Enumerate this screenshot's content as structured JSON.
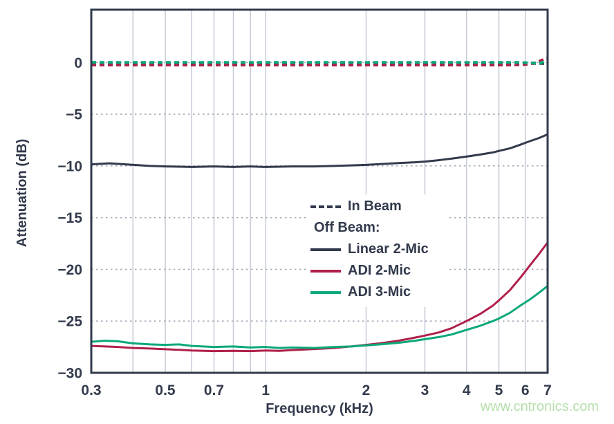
{
  "watermark": {
    "text": "www.cntronics.com",
    "color": "#b6dfab"
  },
  "chart_data": {
    "type": "line",
    "title": "",
    "xlabel": "Frequency (kHz)",
    "ylabel": "Attenuation (dB)",
    "x_scale": "log",
    "xlim": [
      0.3,
      7
    ],
    "ylim": [
      -30,
      5.1
    ],
    "grid": "on",
    "colors": {
      "dark": "#323a4c",
      "red": "#b0204a",
      "green": "#0aa87a",
      "v_gridline": "#c9cdd9",
      "h_gridline": "#a5abba",
      "border": "#323a4c"
    },
    "x_ticks": [
      {
        "v": 0.3,
        "label": "0.3"
      },
      {
        "v": 0.5,
        "label": "0.5"
      },
      {
        "v": 0.7,
        "label": "0.7"
      },
      {
        "v": 1,
        "label": "1"
      },
      {
        "v": 2,
        "label": "2"
      },
      {
        "v": 3,
        "label": "3"
      },
      {
        "v": 4,
        "label": "4"
      },
      {
        "v": 5,
        "label": "5"
      },
      {
        "v": 6,
        "label": "6"
      },
      {
        "v": 7,
        "label": "7"
      }
    ],
    "y_ticks": [
      {
        "v": 0,
        "label": "0"
      },
      {
        "v": -5,
        "label": "−5"
      },
      {
        "v": -10,
        "label": "−10"
      },
      {
        "v": -15,
        "label": "−15"
      },
      {
        "v": -20,
        "label": "−20"
      },
      {
        "v": -25,
        "label": "−25"
      },
      {
        "v": -30,
        "label": "−30"
      }
    ],
    "x_gridlines": [
      0.4,
      0.5,
      0.6,
      0.7,
      0.8,
      0.9,
      1,
      2,
      3,
      4,
      5,
      6
    ],
    "y_gridlines": [
      0,
      -5,
      -10,
      -15,
      -20,
      -25
    ],
    "legend": {
      "position": "center-right",
      "items": [
        {
          "label": "In Beam",
          "swatch": "dashed",
          "color": "#323a4c"
        },
        {
          "label": "Off Beam:",
          "swatch": "none",
          "color": ""
        },
        {
          "label": "Linear 2-Mic",
          "swatch": "solid",
          "color": "#323a4c"
        },
        {
          "label": "ADI 2-Mic",
          "swatch": "solid",
          "color": "#b0204a"
        },
        {
          "label": "ADI 3-Mic",
          "swatch": "solid",
          "color": "#0aa87a"
        }
      ]
    },
    "series": [
      {
        "name": "In Beam Linear 2-Mic",
        "color": "#323a4c",
        "dash": true,
        "width": 4,
        "points": [
          [
            0.3,
            -0.1
          ],
          [
            7,
            -0.1
          ]
        ]
      },
      {
        "name": "In Beam ADI 2-Mic",
        "color": "#b0204a",
        "dash": true,
        "width": 4,
        "points": [
          [
            0.3,
            -0.25
          ],
          [
            5.5,
            -0.25
          ],
          [
            6.0,
            -0.2
          ],
          [
            6.4,
            -0.05
          ],
          [
            6.7,
            0.2
          ],
          [
            7,
            0.45
          ]
        ]
      },
      {
        "name": "In Beam ADI 3-Mic",
        "color": "#0aa87a",
        "dash": true,
        "width": 4,
        "points": [
          [
            0.3,
            0.0
          ],
          [
            5.8,
            0.0
          ],
          [
            6.3,
            -0.05
          ],
          [
            6.6,
            -0.1
          ],
          [
            6.8,
            0.05
          ],
          [
            7,
            0.3
          ]
        ]
      },
      {
        "name": "Off Beam Linear 2-Mic",
        "color": "#323a4c",
        "dash": false,
        "width": 3,
        "points": [
          [
            0.3,
            -9.85
          ],
          [
            0.34,
            -9.75
          ],
          [
            0.38,
            -9.85
          ],
          [
            0.45,
            -10.0
          ],
          [
            0.5,
            -10.05
          ],
          [
            0.6,
            -10.1
          ],
          [
            0.7,
            -10.05
          ],
          [
            0.8,
            -10.1
          ],
          [
            0.9,
            -10.05
          ],
          [
            1.0,
            -10.1
          ],
          [
            1.2,
            -10.05
          ],
          [
            1.4,
            -10.05
          ],
          [
            1.6,
            -10.0
          ],
          [
            1.8,
            -9.95
          ],
          [
            2.0,
            -9.9
          ],
          [
            2.2,
            -9.82
          ],
          [
            2.5,
            -9.72
          ],
          [
            2.8,
            -9.65
          ],
          [
            3.0,
            -9.58
          ],
          [
            3.3,
            -9.45
          ],
          [
            3.6,
            -9.3
          ],
          [
            4.0,
            -9.1
          ],
          [
            4.4,
            -8.9
          ],
          [
            4.8,
            -8.7
          ],
          [
            5.0,
            -8.55
          ],
          [
            5.4,
            -8.3
          ],
          [
            5.8,
            -7.95
          ],
          [
            6.2,
            -7.6
          ],
          [
            6.6,
            -7.3
          ],
          [
            7.0,
            -6.95
          ]
        ]
      },
      {
        "name": "Off Beam ADI 2-Mic",
        "color": "#b0204a",
        "dash": false,
        "width": 3,
        "points": [
          [
            0.3,
            -27.4
          ],
          [
            0.33,
            -27.45
          ],
          [
            0.36,
            -27.5
          ],
          [
            0.4,
            -27.6
          ],
          [
            0.45,
            -27.65
          ],
          [
            0.5,
            -27.72
          ],
          [
            0.55,
            -27.78
          ],
          [
            0.6,
            -27.85
          ],
          [
            0.7,
            -27.9
          ],
          [
            0.8,
            -27.88
          ],
          [
            0.9,
            -27.9
          ],
          [
            1.0,
            -27.85
          ],
          [
            1.1,
            -27.88
          ],
          [
            1.2,
            -27.8
          ],
          [
            1.4,
            -27.7
          ],
          [
            1.6,
            -27.6
          ],
          [
            1.8,
            -27.45
          ],
          [
            2.0,
            -27.3
          ],
          [
            2.2,
            -27.15
          ],
          [
            2.5,
            -26.9
          ],
          [
            2.8,
            -26.6
          ],
          [
            3.0,
            -26.4
          ],
          [
            3.3,
            -26.1
          ],
          [
            3.6,
            -25.7
          ],
          [
            4.0,
            -25.0
          ],
          [
            4.4,
            -24.3
          ],
          [
            4.8,
            -23.5
          ],
          [
            5.0,
            -23.0
          ],
          [
            5.4,
            -22.0
          ],
          [
            5.8,
            -20.8
          ],
          [
            6.2,
            -19.6
          ],
          [
            6.6,
            -18.5
          ],
          [
            7.0,
            -17.4
          ]
        ]
      },
      {
        "name": "Off Beam ADI 3-Mic",
        "color": "#0aa87a",
        "dash": false,
        "width": 3,
        "points": [
          [
            0.3,
            -27.0
          ],
          [
            0.33,
            -26.9
          ],
          [
            0.36,
            -26.95
          ],
          [
            0.4,
            -27.15
          ],
          [
            0.45,
            -27.25
          ],
          [
            0.5,
            -27.3
          ],
          [
            0.55,
            -27.25
          ],
          [
            0.6,
            -27.4
          ],
          [
            0.7,
            -27.5
          ],
          [
            0.8,
            -27.45
          ],
          [
            0.9,
            -27.55
          ],
          [
            1.0,
            -27.5
          ],
          [
            1.1,
            -27.6
          ],
          [
            1.2,
            -27.55
          ],
          [
            1.4,
            -27.6
          ],
          [
            1.6,
            -27.5
          ],
          [
            1.8,
            -27.45
          ],
          [
            2.0,
            -27.35
          ],
          [
            2.2,
            -27.25
          ],
          [
            2.5,
            -27.1
          ],
          [
            2.8,
            -26.9
          ],
          [
            3.0,
            -26.75
          ],
          [
            3.3,
            -26.55
          ],
          [
            3.6,
            -26.3
          ],
          [
            4.0,
            -25.85
          ],
          [
            4.4,
            -25.45
          ],
          [
            4.8,
            -25.0
          ],
          [
            5.0,
            -24.75
          ],
          [
            5.4,
            -24.2
          ],
          [
            5.8,
            -23.5
          ],
          [
            6.2,
            -22.9
          ],
          [
            6.6,
            -22.25
          ],
          [
            7.0,
            -21.6
          ]
        ]
      }
    ]
  }
}
